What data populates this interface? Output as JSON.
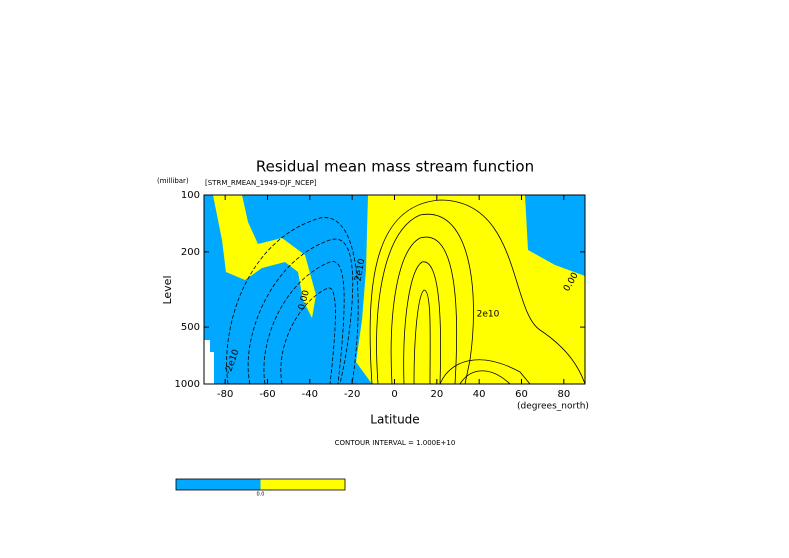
{
  "chart_data": {
    "type": "contour",
    "title": "Residual mean mass stream function",
    "subtitle": "[STRM_RMEAN_1949-DJF_NCEP]",
    "xlabel": "Latitude",
    "xunits": "(degrees_north)",
    "ylabel": "Level",
    "yunits": "(millibar)",
    "xlim": [
      -90,
      90
    ],
    "xticks": [
      -80,
      -60,
      -40,
      -20,
      0,
      20,
      40,
      60,
      80
    ],
    "ylim": [
      1000,
      100
    ],
    "yticks": [
      100,
      200,
      500,
      1000
    ],
    "log_y": true,
    "contour_labels": [
      "2e10",
      "2e10",
      "0.00",
      "0.00",
      "-2e10"
    ],
    "note": "CONTOUR INTERVAL = 1.000E+10",
    "colorbar": {
      "colors": [
        "#00a9ff",
        "#ffff00"
      ],
      "label": "0.0"
    }
  }
}
